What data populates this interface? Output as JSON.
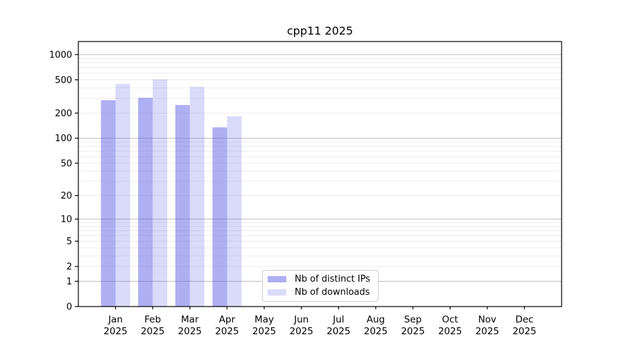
{
  "chart_data": {
    "type": "bar",
    "title": "cpp11 2025",
    "months": [
      "Jan",
      "Feb",
      "Mar",
      "Apr",
      "May",
      "Jun",
      "Jul",
      "Aug",
      "Sep",
      "Oct",
      "Nov",
      "Dec"
    ],
    "year_label": "2025",
    "categories": [
      "Jan 2025",
      "Feb 2025",
      "Mar 2025",
      "Apr 2025",
      "May 2025",
      "Jun 2025",
      "Jul 2025",
      "Aug 2025",
      "Sep 2025",
      "Oct 2025",
      "Nov 2025",
      "Dec 2025"
    ],
    "series": [
      {
        "name": "Nb of distinct IPs",
        "color": "rgba(87,87,230,0.48)",
        "solid_hex": "#a9a9f3",
        "values": [
          285,
          305,
          250,
          135,
          null,
          null,
          null,
          null,
          null,
          null,
          null,
          null
        ]
      },
      {
        "name": "Nb of downloads",
        "color": "rgba(87,87,230,0.22)",
        "solid_hex": "#d9d9f8",
        "values": [
          445,
          505,
          412,
          183,
          null,
          null,
          null,
          null,
          null,
          null,
          null,
          null
        ]
      }
    ],
    "y_ticks": [
      0,
      1,
      2,
      5,
      10,
      20,
      50,
      100,
      200,
      500,
      1000
    ],
    "y_scale": "log10(1+x)",
    "y_max": 1430,
    "ylim": [
      0,
      1430
    ],
    "xlabel": "",
    "ylabel": "",
    "grid": true,
    "legend_position": "lower center"
  }
}
